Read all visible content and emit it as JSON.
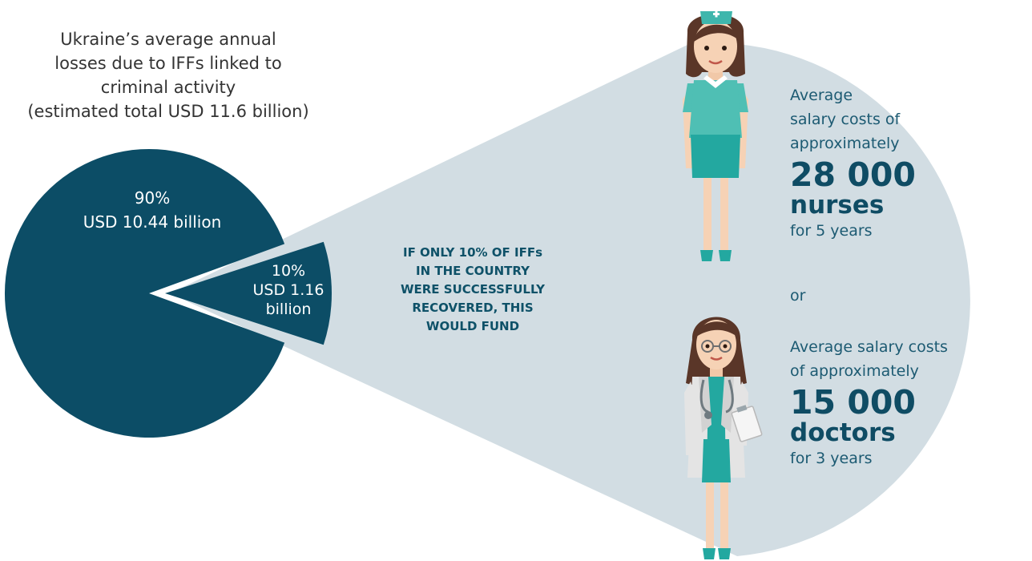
{
  "chart_data": {
    "type": "pie",
    "title": "Ukraine’s average annual losses due to IFFs linked to criminal activity (estimated total USD 11.6 billion)",
    "slices": [
      {
        "percent_label": "90%",
        "value_label": "USD 10.44 billion",
        "percent": 90,
        "value": 10.44,
        "color": "#0c4d66"
      },
      {
        "percent_label": "10%",
        "value_label": "USD 1.16 billion",
        "percent": 10,
        "value": 1.16,
        "color": "#0c4d66"
      }
    ],
    "exploded_slice": "10%"
  },
  "title_lines": [
    "Ukraine’s average annual",
    "losses due to IFFs linked to",
    "criminal activity",
    "(estimated total USD 11.6 billion)"
  ],
  "pie_labels": {
    "big_percent": "90%",
    "big_value": "USD 10.44 billion",
    "small_percent": "10%",
    "small_value_line1": "USD 1.16",
    "small_value_line2": "billion"
  },
  "callout_lines": [
    "IF ONLY 10% OF IFFs",
    "IN THE COUNTRY",
    "WERE SUCCESSFULLY",
    "RECOVERED, THIS",
    "WOULD FUND"
  ],
  "nurses": {
    "intro_lines": [
      "Average",
      "salary costs of",
      "approximately"
    ],
    "count": "28 000",
    "profession": "nurses",
    "duration": "for 5 years"
  },
  "or_text": "or",
  "doctors": {
    "intro_lines": [
      "Average salary costs",
      "of approximately"
    ],
    "count": "15 000",
    "profession": "doctors",
    "duration": "for 3 years"
  },
  "colors": {
    "pie": "#0c4d66",
    "callout_bg": "#d2dde3",
    "text_dark": "#0f4c64",
    "scrub_teal": "#4fbfb4",
    "skirt_teal": "#23a8a0"
  },
  "illustrations": {
    "nurse": "nurse-illustration",
    "doctor": "doctor-illustration"
  }
}
